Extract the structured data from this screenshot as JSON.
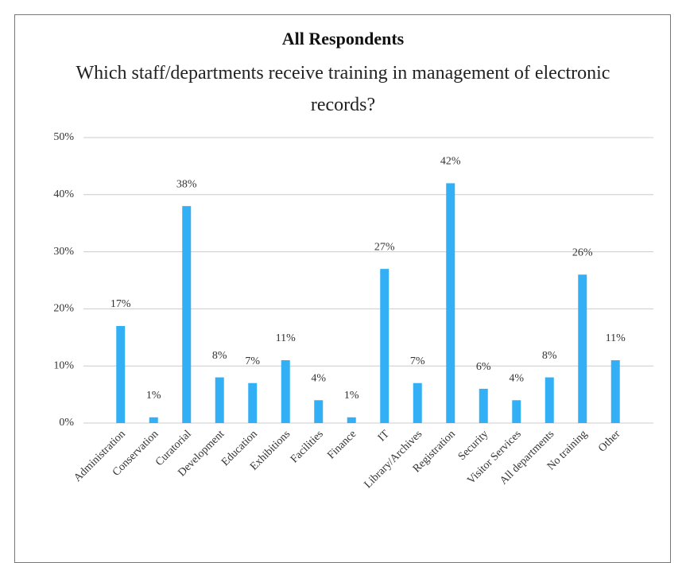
{
  "chart_data": {
    "type": "bar",
    "title": "All Respondents",
    "subtitle": "Which staff/departments receive training in management of electronic records?",
    "categories": [
      "Administration",
      "Conservation",
      "Curatorial",
      "Development",
      "Education",
      "Exhibitions",
      "Facilities",
      "Finance",
      "IT",
      "Library/Archives",
      "Registration",
      "Security",
      "Visitor Services",
      "All departments",
      "No training",
      "Other"
    ],
    "values": [
      17,
      1,
      38,
      8,
      7,
      11,
      4,
      1,
      27,
      7,
      42,
      6,
      4,
      8,
      26,
      11
    ],
    "value_labels": [
      "17%",
      "1%",
      "38%",
      "8%",
      "7%",
      "11%",
      "4%",
      "1%",
      "27%",
      "7%",
      "42%",
      "6%",
      "4%",
      "8%",
      "26%",
      "11%"
    ],
    "color": "#33b0f5",
    "ylim": [
      0,
      50
    ],
    "yticks": [
      {
        "value": 0,
        "label": "0%"
      },
      {
        "value": 10,
        "label": "10%"
      },
      {
        "value": 20,
        "label": "20%"
      },
      {
        "value": 30,
        "label": "30%"
      },
      {
        "value": 40,
        "label": "40%"
      },
      {
        "value": 50,
        "label": "50%"
      }
    ],
    "grid": true
  }
}
